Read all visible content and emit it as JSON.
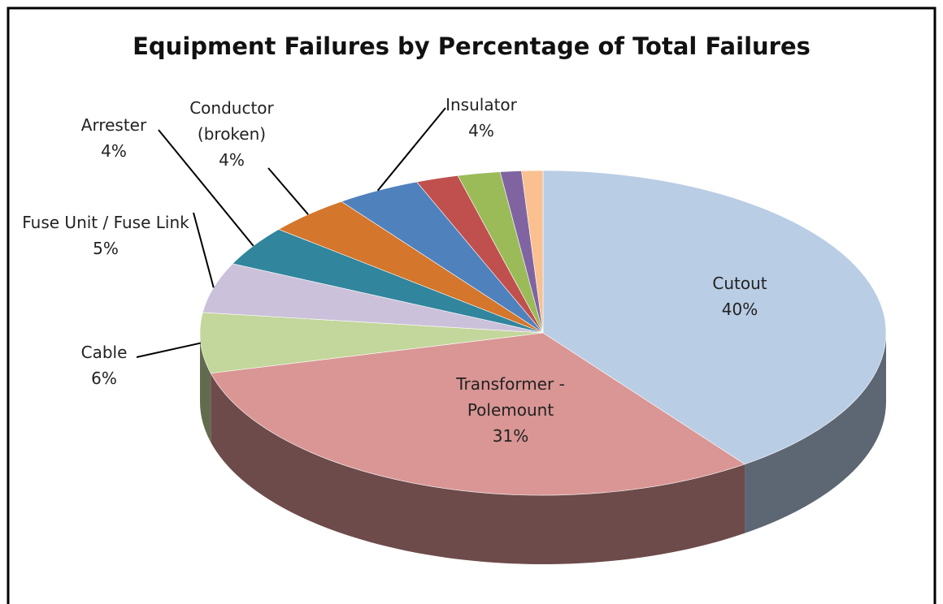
{
  "chart_data": {
    "type": "pie3d",
    "title": "Equipment Failures by Percentage of Total Failures",
    "categories": [
      "Cutout",
      "Transformer - Polemount",
      "Cable",
      "Fuse Unit / Fuse Link",
      "Arrester",
      "Conductor (broken)",
      "Insulator",
      null,
      null,
      null,
      null
    ],
    "values": [
      40,
      31,
      6,
      5,
      4,
      4,
      4,
      2,
      2,
      1,
      1
    ],
    "value_labels": [
      "40%",
      "31%",
      "6%",
      "5%",
      "4%",
      "4%",
      "4%",
      null,
      null,
      null,
      null
    ],
    "colors": [
      "#b9cde5",
      "#d99694",
      "#c3d69b",
      "#ccc1da",
      "#31859c",
      "#d4762c",
      "#4f81bd",
      "#c0504d",
      "#9bbb59",
      "#8064a2",
      "#fac090"
    ]
  }
}
